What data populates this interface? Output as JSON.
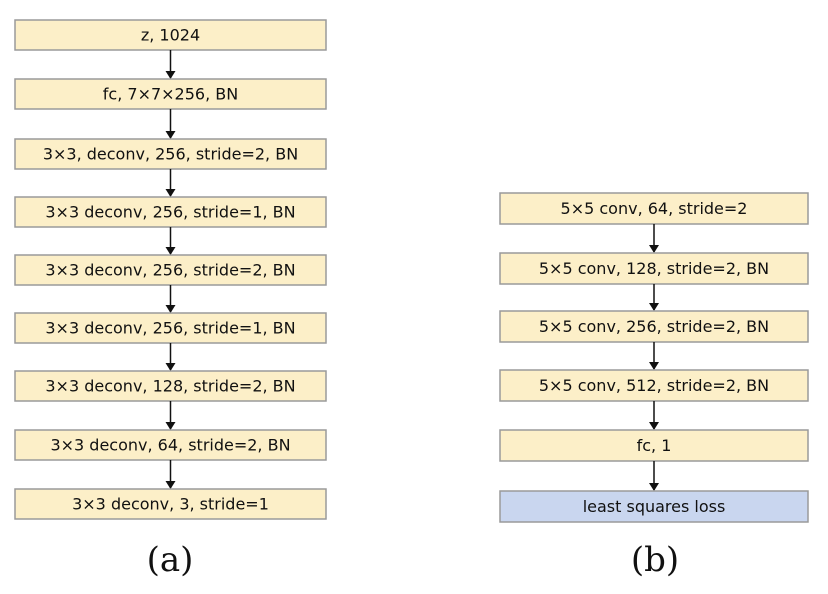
{
  "left": {
    "nodes": [
      {
        "label": "z, 1024"
      },
      {
        "label": "fc, 7×7×256, BN"
      },
      {
        "label": "3×3, deconv, 256, stride=2, BN"
      },
      {
        "label": "3×3 deconv, 256, stride=1, BN"
      },
      {
        "label": "3×3 deconv, 256, stride=2, BN"
      },
      {
        "label": "3×3 deconv, 256, stride=1, BN"
      },
      {
        "label": "3×3 deconv, 128, stride=2, BN"
      },
      {
        "label": "3×3 deconv, 64, stride=2, BN"
      },
      {
        "label": "3×3 deconv, 3, stride=1"
      }
    ],
    "caption": "(a)"
  },
  "right": {
    "nodes": [
      {
        "label": "5×5 conv, 64, stride=2"
      },
      {
        "label": "5×5 conv, 128, stride=2, BN"
      },
      {
        "label": "5×5 conv, 256, stride=2, BN"
      },
      {
        "label": "5×5 conv, 512, stride=2, BN"
      },
      {
        "label": "fc, 1"
      },
      {
        "label": "least squares loss"
      }
    ],
    "caption": "(b)"
  }
}
